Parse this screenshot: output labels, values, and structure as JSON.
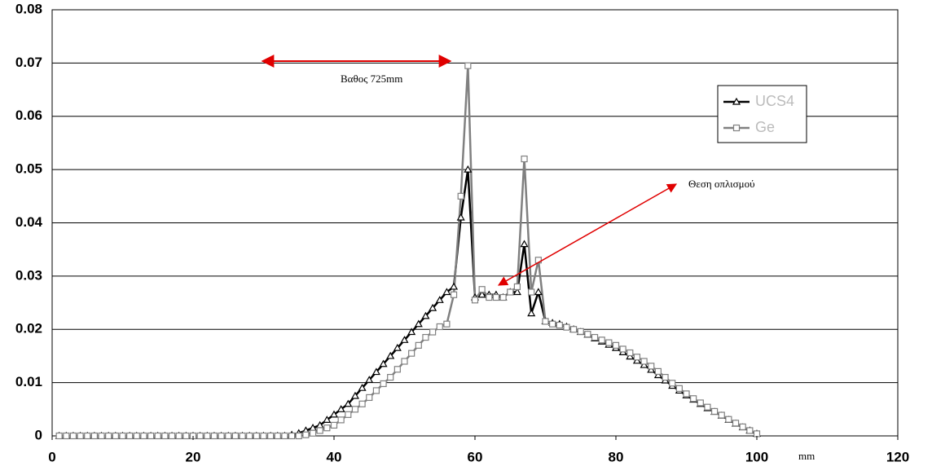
{
  "chart_data": {
    "type": "line",
    "annotations": [
      "Βαθος 725mm",
      "Θεση οπλισμού"
    ],
    "x_label": "mm",
    "x": [
      1,
      2,
      3,
      4,
      5,
      6,
      7,
      8,
      9,
      10,
      11,
      12,
      13,
      14,
      15,
      16,
      17,
      18,
      19,
      20,
      21,
      22,
      23,
      24,
      25,
      26,
      27,
      28,
      29,
      30,
      31,
      32,
      33,
      34,
      35,
      36,
      37,
      38,
      39,
      40,
      41,
      42,
      43,
      44,
      45,
      46,
      47,
      48,
      49,
      50,
      51,
      52,
      53,
      54,
      55,
      56,
      57,
      58,
      59,
      60,
      61,
      62,
      63,
      64,
      65,
      66,
      67,
      68,
      69,
      70,
      71,
      72,
      73,
      74,
      75,
      76,
      77,
      78,
      79,
      80,
      81,
      82,
      83,
      84,
      85,
      86,
      87,
      88,
      89,
      90,
      91,
      92,
      93,
      94,
      95,
      96,
      97,
      98,
      99,
      100
    ],
    "series": [
      {
        "name": "UCS4",
        "color": "#000000",
        "marker": "triangle",
        "values": [
          0,
          0,
          0,
          0,
          0,
          0,
          0,
          0,
          0,
          0,
          0,
          0,
          0,
          0,
          0,
          0,
          0,
          0,
          0,
          0,
          0,
          0,
          0,
          0,
          0,
          0,
          0,
          0,
          0,
          0,
          0,
          0,
          0,
          0.0002,
          0.0005,
          0.001,
          0.0015,
          0.002,
          0.003,
          0.004,
          0.005,
          0.006,
          0.0075,
          0.009,
          0.0105,
          0.012,
          0.0135,
          0.015,
          0.0165,
          0.018,
          0.0195,
          0.021,
          0.0225,
          0.024,
          0.0255,
          0.027,
          0.028,
          0.041,
          0.05,
          0.026,
          0.0265,
          0.0265,
          0.0265,
          0.026,
          0.027,
          0.027,
          0.036,
          0.023,
          0.027,
          0.0215,
          0.0212,
          0.021,
          0.0205,
          0.02,
          0.0195,
          0.019,
          0.0183,
          0.0177,
          0.0171,
          0.0165,
          0.0157,
          0.0149,
          0.0141,
          0.0133,
          0.0124,
          0.0114,
          0.0104,
          0.0094,
          0.0085,
          0.0076,
          0.0068,
          0.006,
          0.0052,
          0.0045,
          0.0038,
          0.003,
          0.0023,
          0.0016,
          0.001,
          0.0004
        ]
      },
      {
        "name": "Ge",
        "color": "#808080",
        "marker": "square",
        "values": [
          0,
          0,
          0,
          0,
          0,
          0,
          0,
          0,
          0,
          0,
          0,
          0,
          0,
          0,
          0,
          0,
          0,
          0,
          0,
          0,
          0,
          0,
          0,
          0,
          0,
          0,
          0,
          0,
          0,
          0,
          0,
          0,
          0,
          0,
          0,
          0.0002,
          0.0005,
          0.001,
          0.0015,
          0.002,
          0.003,
          0.004,
          0.005,
          0.006,
          0.0072,
          0.0085,
          0.0098,
          0.011,
          0.0125,
          0.014,
          0.0155,
          0.017,
          0.0185,
          0.0195,
          0.0205,
          0.021,
          0.0265,
          0.045,
          0.0695,
          0.0255,
          0.0275,
          0.026,
          0.026,
          0.026,
          0.027,
          0.028,
          0.052,
          0.027,
          0.033,
          0.0215,
          0.021,
          0.0208,
          0.0204,
          0.02,
          0.0196,
          0.0191,
          0.0185,
          0.018,
          0.0175,
          0.017,
          0.0163,
          0.0156,
          0.0148,
          0.014,
          0.0131,
          0.0121,
          0.011,
          0.0099,
          0.0089,
          0.0079,
          0.007,
          0.0062,
          0.0054,
          0.0046,
          0.0039,
          0.0031,
          0.0024,
          0.0017,
          0.001,
          0.0004
        ]
      }
    ],
    "xlim": [
      0,
      120
    ],
    "xticks": [
      0,
      20,
      40,
      60,
      80,
      100,
      120
    ],
    "ylim": [
      0,
      0.08
    ],
    "yticks": [
      0,
      0.01,
      0.02,
      0.03,
      0.04,
      0.05,
      0.06,
      0.07,
      0.08
    ],
    "grid": true,
    "legend": "upper right"
  }
}
